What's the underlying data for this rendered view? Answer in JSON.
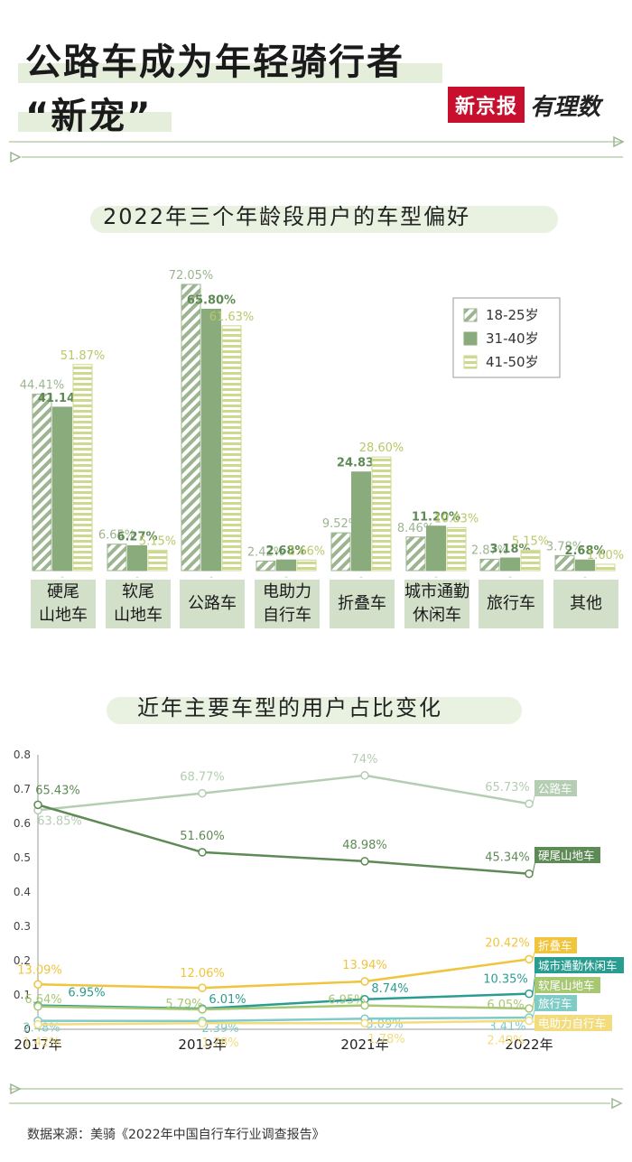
{
  "header": {
    "title_line1": "公路车成为年轻骑行者",
    "title_line2": "“新宠”",
    "logo_red": "新京报",
    "logo_script": "有理数"
  },
  "colors": {
    "c1": "#9cb590",
    "c2": "#8aab7c",
    "c3": "#ccd98f",
    "box": "#d2e0c9",
    "accent_green": "#5e8a55",
    "teal": "#2a9d91",
    "yellow": "#f0c43c"
  },
  "source": "数据来源：美骑《2022年中国自行车行业调查报告》",
  "chart_data": [
    {
      "type": "bar",
      "title": "2022年三个年龄段用户的车型偏好",
      "categories": [
        "硬尾\n山地车",
        "软尾\n山地车",
        "公路车",
        "电助力\n自行车",
        "折叠车",
        "城市通勤\n休闲车",
        "旅行车",
        "其他"
      ],
      "series": [
        {
          "name": "18-25岁",
          "pattern": "diagonal",
          "values": [
            44.41,
            6.65,
            72.05,
            2.42,
            9.52,
            8.46,
            2.87,
            3.78
          ],
          "labels": [
            "44.41%",
            "6.65%",
            "72.05%",
            "2.42%",
            "9.52%",
            "8.46%",
            "2.87%",
            "3.78%"
          ]
        },
        {
          "name": "31-40岁",
          "pattern": "solid",
          "values": [
            41.14,
            6.27,
            65.8,
            2.68,
            24.83,
            11.2,
            3.18,
            2.68
          ],
          "labels": [
            "41.14%",
            "6.27%",
            "65.80%",
            "2.68%",
            "24.83%",
            "11.20%",
            "3.18%",
            "2.68%"
          ]
        },
        {
          "name": "41-50岁",
          "pattern": "horizontal",
          "values": [
            51.87,
            5.15,
            61.63,
            2.66,
            28.6,
            10.83,
            5.15,
            1.6
          ],
          "labels": [
            "51.87%",
            "5.15%",
            "61.63%",
            "2.66%",
            "28.60%",
            "10.83%",
            "5.15%",
            "1.60%"
          ]
        }
      ],
      "legend_position": "top-right",
      "ylim": [
        0,
        80
      ]
    },
    {
      "type": "line",
      "title": "近年主要车型的用户占比变化",
      "x": [
        "2017年",
        "2019年",
        "2021年",
        "2022年"
      ],
      "ylim": [
        0,
        0.8
      ],
      "yticks": [
        "0",
        "0.1",
        "0.2",
        "0.3",
        "0.4",
        "0.5",
        "0.6",
        "0.7",
        "0.8"
      ],
      "series": [
        {
          "name": "公路车",
          "color": "#b4cdb3",
          "values": [
            0.6385,
            0.6877,
            0.74,
            0.6573
          ],
          "labels": [
            "63.85%",
            "68.77%",
            "74%",
            "65.73%"
          ]
        },
        {
          "name": "硬尾山地车",
          "color": "#5e8a55",
          "values": [
            0.6543,
            0.516,
            0.4898,
            0.4534
          ],
          "labels": [
            "65.43%",
            "51.60%",
            "48.98%",
            "45.34%"
          ]
        },
        {
          "name": "折叠车",
          "color": "#f0c43c",
          "values": [
            0.1309,
            0.1206,
            0.1394,
            0.2042
          ],
          "labels": [
            "13.09%",
            "12.06%",
            "13.94%",
            "20.42%"
          ]
        },
        {
          "name": "城市通勤休闲车",
          "color": "#2a9d91",
          "values": [
            0.0695,
            0.0601,
            0.0874,
            0.1035
          ],
          "labels": [
            "6.95%",
            "6.01%",
            "8.74%",
            "10.35%"
          ]
        },
        {
          "name": "软尾山地车",
          "color": "#a7c772",
          "values": [
            0.0664,
            0.0579,
            0.0695,
            0.0605
          ],
          "labels": [
            "6.64%",
            "5.79%",
            "6.95%",
            "6.05%"
          ]
        },
        {
          "name": "旅行车",
          "color": "#7fcbc6",
          "values": [
            0.0248,
            0.0239,
            0.0309,
            0.0341
          ],
          "labels": [
            "2.48%",
            "2.39%",
            "3.09%",
            "3.41%"
          ]
        },
        {
          "name": "电助力自行车",
          "color": "#f2dc7e",
          "values": [
            0.0142,
            0.0178,
            0.0178,
            0.0249
          ],
          "labels": [
            "1.42%",
            "1.78%",
            "1.78%",
            "2.49%"
          ]
        }
      ]
    }
  ]
}
